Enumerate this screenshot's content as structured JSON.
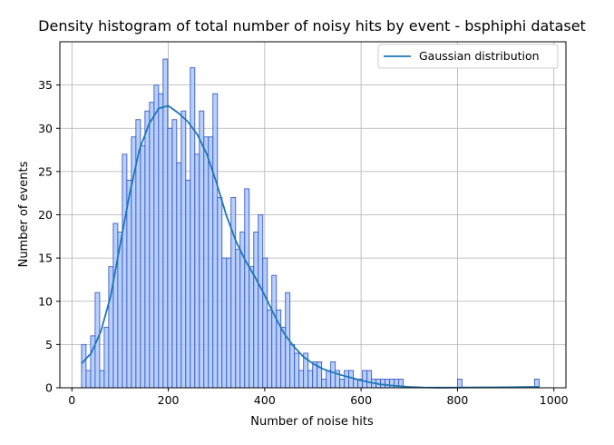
{
  "chart_data": {
    "type": "bar",
    "title": "Density histogram of total number of noisy hits by event - bsphiphi dataset",
    "xlabel": "Number of noise hits",
    "ylabel": "Number of events",
    "xlim": [
      -25,
      1025
    ],
    "ylim": [
      0,
      40
    ],
    "xticks": [
      0,
      200,
      400,
      600,
      800,
      1000
    ],
    "yticks": [
      0,
      5,
      10,
      15,
      20,
      25,
      30,
      35
    ],
    "grid": true,
    "legend_position": "top-right",
    "bin_width": 9.4,
    "bar_color": "#aac8fb",
    "bar_edge_color": "#3f5bc9",
    "histogram": {
      "bin_starts": [
        20,
        29.4,
        38.8,
        48.2,
        57.6,
        67,
        76.4,
        85.8,
        95.2,
        104.6,
        114,
        123.4,
        132.8,
        142.2,
        151.6,
        161,
        170.4,
        179.8,
        189.2,
        198.6,
        208,
        217.4,
        226.8,
        236.2,
        245.6,
        255,
        264.4,
        273.8,
        283.2,
        292.6,
        302,
        311.4,
        320.8,
        330.2,
        339.6,
        349,
        358.4,
        367.8,
        377.2,
        386.6,
        396,
        405.4,
        414.8,
        424.2,
        433.6,
        443,
        452.4,
        461.8,
        471.2,
        480.6,
        490,
        499.4,
        508.8,
        518.2,
        527.6,
        537,
        546.4,
        555.8,
        565.2,
        574.6,
        584,
        593.4,
        602.8,
        612.2,
        621.6,
        631,
        640.4,
        649.8,
        659.2,
        668.6,
        678,
        800,
        960
      ],
      "counts": [
        5,
        2,
        6,
        11,
        2,
        7,
        14,
        19,
        18,
        27,
        24,
        29,
        31,
        28,
        32,
        33,
        35,
        34,
        38,
        30,
        31,
        26,
        32,
        24,
        37,
        27,
        32,
        29,
        29,
        34,
        22,
        15,
        15,
        22,
        16,
        18,
        23,
        14,
        18,
        20,
        15,
        9,
        13,
        9,
        7,
        11,
        5,
        4,
        2,
        4,
        2,
        3,
        3,
        1,
        2,
        3,
        2,
        1,
        2,
        2,
        1,
        1,
        2,
        2,
        1,
        1,
        1,
        1,
        1,
        1,
        1,
        1,
        1
      ]
    },
    "series": [
      {
        "name": "Gaussian distribution",
        "type": "line",
        "color": "#1f77b4",
        "x": [
          20,
          40,
          60,
          80,
          100,
          120,
          140,
          160,
          180,
          200,
          220,
          240,
          260,
          280,
          300,
          320,
          340,
          360,
          380,
          400,
          420,
          440,
          460,
          480,
          500,
          520,
          540,
          560,
          580,
          600,
          620,
          640,
          660,
          680,
          700,
          730,
          760,
          800,
          850,
          900,
          950,
          970
        ],
        "y": [
          2.8,
          4.0,
          6.5,
          10.5,
          16.5,
          22.5,
          27.5,
          30.5,
          32.3,
          32.6,
          31.8,
          30.8,
          29.3,
          27.0,
          23.7,
          20.0,
          17.0,
          14.7,
          12.8,
          10.7,
          8.4,
          6.3,
          4.8,
          3.6,
          2.8,
          2.2,
          1.8,
          1.45,
          1.15,
          0.85,
          0.6,
          0.4,
          0.28,
          0.18,
          0.1,
          0.04,
          0.02,
          0.03,
          0.05,
          0.06,
          0.1,
          0.12
        ]
      }
    ]
  }
}
